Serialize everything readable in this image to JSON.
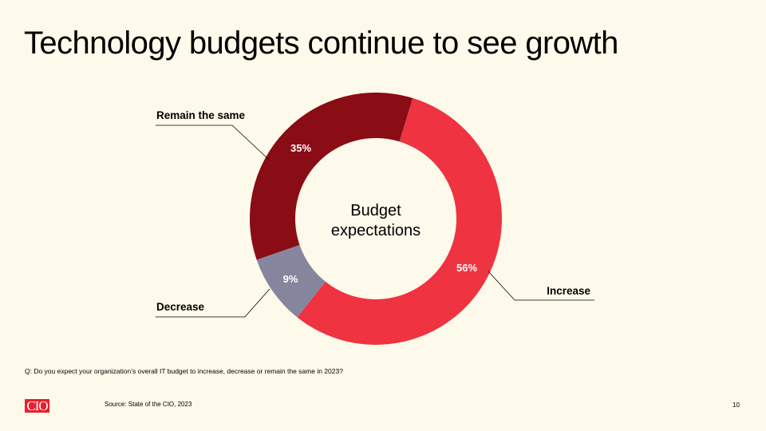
{
  "title": "Technology budgets continue to see growth",
  "chart_data": {
    "type": "pie",
    "variant": "donut",
    "center_label": "Budget expectations",
    "center_label_lines": [
      "Budget",
      "expectations"
    ],
    "slices": [
      {
        "label": "Increase",
        "value": 56,
        "value_label": "56%",
        "color": "#ef3340"
      },
      {
        "label": "Decrease",
        "value": 9,
        "value_label": "9%",
        "color": "#85869e"
      },
      {
        "label": "Remain the same",
        "value": 35,
        "value_label": "35%",
        "color": "#8a0c15"
      }
    ]
  },
  "question": "Q: Do you expect your organization’s overall IT budget to increase, decrease or remain the same in 2023?",
  "source": "Source: State of the CIO, 2023",
  "logo_text": "CIO",
  "page_number": "10"
}
